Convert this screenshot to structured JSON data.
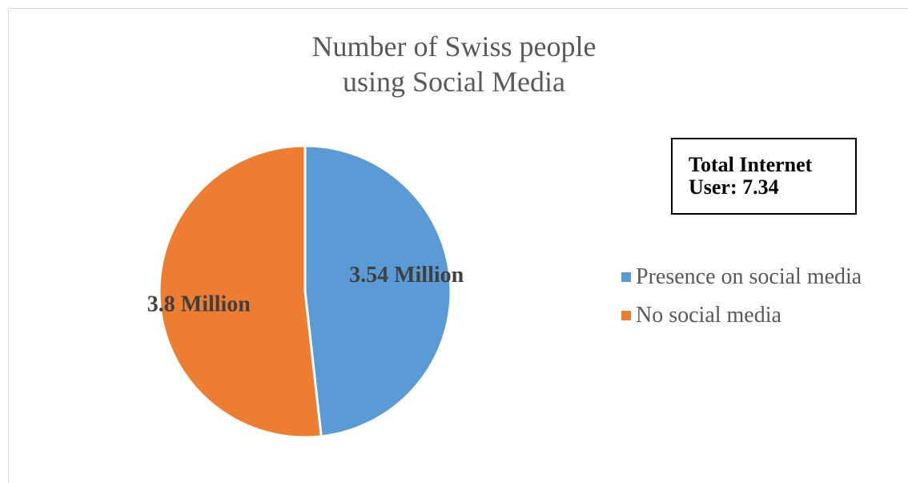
{
  "chart_data": {
    "type": "pie",
    "title_lines": [
      "Number of Swiss people",
      "using Social Media"
    ],
    "categories": [
      "Presence on social media",
      "No social media"
    ],
    "values": [
      3.54,
      3.8
    ],
    "data_labels": [
      "3.54 Million",
      "3.8 Million"
    ],
    "colors": [
      "#5b9bd5",
      "#ed7d31"
    ],
    "legend_position": "right",
    "annotation": "Total Internet\nUser: 7.34"
  }
}
